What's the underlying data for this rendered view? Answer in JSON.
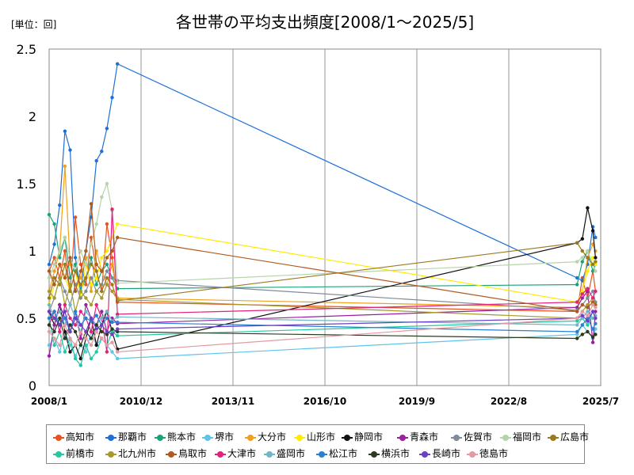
{
  "chart_data": {
    "type": "line",
    "title": "各世帯の平均支出頻度[2008/1～2025/5]",
    "unit_label": "[単位：回]",
    "x_ticks": [
      "2008/1",
      "2010/12",
      "2013/11",
      "2016/10",
      "2019/9",
      "2022/8",
      "2025/7"
    ],
    "y_ticks": [
      "0",
      "0.5",
      "1",
      "1.5",
      "2",
      "2.5"
    ],
    "ylim": [
      0,
      2.5
    ],
    "xlim": [
      "2008/1",
      "2025/7"
    ],
    "grid": "vertical",
    "legend_position": "bottom",
    "series": [
      {
        "name": "高知市",
        "color": "#e8531f",
        "x": [
          "2008/1",
          "2008/3",
          "2008/5",
          "2008/7",
          "2008/9",
          "2008/11",
          "2009/1",
          "2009/3",
          "2009/5",
          "2009/7",
          "2009/9",
          "2009/11",
          "2010/1",
          "2010/3",
          "2024/10",
          "2024/12",
          "2025/2",
          "2025/4",
          "2025/5"
        ],
        "values": [
          0.85,
          0.95,
          0.8,
          1.0,
          0.7,
          1.25,
          0.9,
          0.75,
          1.1,
          0.85,
          0.7,
          1.2,
          0.95,
          0.62,
          0.55,
          0.8,
          0.65,
          0.85,
          0.7
        ]
      },
      {
        "name": "那覇市",
        "color": "#1f6fd8",
        "x": [
          "2008/1",
          "2008/3",
          "2008/5",
          "2008/7",
          "2008/9",
          "2008/11",
          "2009/1",
          "2009/3",
          "2009/5",
          "2009/7",
          "2009/9",
          "2009/11",
          "2010/1",
          "2010/3",
          "2024/10",
          "2024/12",
          "2025/2",
          "2025/4",
          "2025/5"
        ],
        "values": [
          0.9,
          1.05,
          1.34,
          1.89,
          1.75,
          0.95,
          0.7,
          1.0,
          1.25,
          1.67,
          1.74,
          1.91,
          2.14,
          2.39,
          0.8,
          0.78,
          0.9,
          1.18,
          1.1
        ]
      },
      {
        "name": "熊本市",
        "color": "#1aa37a",
        "x": [
          "2008/1",
          "2008/3",
          "2008/5",
          "2008/7",
          "2008/9",
          "2008/11",
          "2009/1",
          "2009/3",
          "2009/5",
          "2009/7",
          "2009/9",
          "2009/11",
          "2010/1",
          "2010/3",
          "2024/10",
          "2024/12",
          "2025/2",
          "2025/4",
          "2025/5"
        ],
        "values": [
          1.27,
          1.2,
          0.95,
          1.1,
          0.8,
          0.9,
          0.7,
          0.8,
          0.95,
          0.75,
          0.85,
          0.9,
          0.8,
          0.72,
          0.75,
          0.92,
          1.0,
          0.85,
          0.9
        ]
      },
      {
        "name": "堺市",
        "color": "#5fc3ea",
        "x": [
          "2008/1",
          "2008/3",
          "2008/5",
          "2008/7",
          "2008/9",
          "2008/11",
          "2009/1",
          "2009/3",
          "2009/5",
          "2009/7",
          "2009/9",
          "2009/11",
          "2010/1",
          "2010/3",
          "2024/10",
          "2024/12",
          "2025/2",
          "2025/4",
          "2025/5"
        ],
        "values": [
          0.3,
          0.35,
          0.25,
          0.4,
          0.3,
          0.22,
          0.3,
          0.25,
          0.4,
          0.3,
          0.35,
          0.3,
          0.25,
          0.2,
          0.38,
          0.45,
          0.4,
          0.35,
          0.42
        ]
      },
      {
        "name": "大分市",
        "color": "#f0a01e",
        "x": [
          "2008/1",
          "2008/3",
          "2008/5",
          "2008/7",
          "2008/9",
          "2008/11",
          "2009/1",
          "2009/3",
          "2009/5",
          "2009/7",
          "2009/9",
          "2009/11",
          "2010/1",
          "2010/3",
          "2024/10",
          "2024/12",
          "2025/2",
          "2025/4",
          "2025/5"
        ],
        "values": [
          0.7,
          0.85,
          1.0,
          1.63,
          0.9,
          0.75,
          0.8,
          0.95,
          0.7,
          1.0,
          0.85,
          0.75,
          0.9,
          0.65,
          0.58,
          0.7,
          0.95,
          1.05,
          1.0
        ]
      },
      {
        "name": "山形市",
        "color": "#ffea00",
        "x": [
          "2008/1",
          "2008/3",
          "2008/5",
          "2008/7",
          "2008/9",
          "2008/11",
          "2009/1",
          "2009/3",
          "2009/5",
          "2009/7",
          "2009/9",
          "2009/11",
          "2010/1",
          "2010/3",
          "2024/10",
          "2024/12",
          "2025/2",
          "2025/4",
          "2025/5"
        ],
        "values": [
          0.6,
          0.75,
          0.9,
          0.8,
          0.7,
          0.85,
          0.65,
          0.9,
          0.75,
          0.8,
          0.95,
          1.0,
          1.1,
          1.2,
          0.62,
          0.7,
          0.85,
          0.95,
          0.9
        ]
      },
      {
        "name": "静岡市",
        "color": "#111111",
        "x": [
          "2008/1",
          "2008/3",
          "2008/5",
          "2008/7",
          "2008/9",
          "2008/11",
          "2009/1",
          "2009/3",
          "2009/5",
          "2009/7",
          "2009/9",
          "2009/11",
          "2010/1",
          "2010/3",
          "2024/10",
          "2024/12",
          "2025/2",
          "2025/4",
          "2025/5"
        ],
        "values": [
          0.55,
          0.45,
          0.6,
          0.4,
          0.25,
          0.3,
          0.2,
          0.35,
          0.5,
          0.3,
          0.45,
          0.55,
          0.4,
          0.27,
          1.06,
          1.09,
          1.32,
          1.15,
          0.95
        ]
      },
      {
        "name": "青森市",
        "color": "#9a1fa1",
        "x": [
          "2008/1",
          "2008/3",
          "2008/5",
          "2008/7",
          "2008/9",
          "2008/11",
          "2009/1",
          "2009/3",
          "2009/5",
          "2009/7",
          "2009/9",
          "2009/11",
          "2010/1",
          "2010/3",
          "2024/10",
          "2024/12",
          "2025/2",
          "2025/4",
          "2025/5"
        ],
        "values": [
          0.22,
          0.45,
          0.6,
          0.5,
          0.4,
          0.55,
          0.35,
          0.6,
          0.5,
          0.45,
          0.55,
          0.4,
          0.5,
          0.46,
          0.58,
          0.65,
          0.7,
          0.32,
          0.55
        ]
      },
      {
        "name": "佐賀市",
        "color": "#7f8b99",
        "x": [
          "2008/1",
          "2008/3",
          "2008/5",
          "2008/7",
          "2008/9",
          "2008/11",
          "2009/1",
          "2009/3",
          "2009/5",
          "2009/7",
          "2009/9",
          "2009/11",
          "2010/1",
          "2010/3",
          "2024/10",
          "2024/12",
          "2025/2",
          "2025/4",
          "2025/5"
        ],
        "values": [
          0.55,
          0.65,
          0.8,
          0.7,
          0.6,
          0.75,
          0.65,
          0.7,
          0.8,
          0.7,
          0.75,
          0.85,
          0.8,
          0.78,
          0.56,
          0.6,
          0.65,
          0.7,
          0.62
        ]
      },
      {
        "name": "福岡市",
        "color": "#b6d4a8",
        "x": [
          "2008/1",
          "2008/3",
          "2008/5",
          "2008/7",
          "2008/9",
          "2008/11",
          "2009/1",
          "2009/3",
          "2009/5",
          "2009/7",
          "2009/9",
          "2009/11",
          "2010/1",
          "2010/3",
          "2024/10",
          "2024/12",
          "2025/2",
          "2025/4",
          "2025/5"
        ],
        "values": [
          0.8,
          0.9,
          1.0,
          1.1,
          0.95,
          0.85,
          1.0,
          0.9,
          1.05,
          1.2,
          1.4,
          1.5,
          1.3,
          0.76,
          0.92,
          0.95,
          1.0,
          0.9,
          0.85
        ]
      },
      {
        "name": "広島市",
        "color": "#9b7a1f",
        "x": [
          "2008/1",
          "2008/3",
          "2008/5",
          "2008/7",
          "2008/9",
          "2008/11",
          "2009/1",
          "2009/3",
          "2009/5",
          "2009/7",
          "2009/9",
          "2009/11",
          "2010/1",
          "2010/3",
          "2024/10",
          "2024/12",
          "2025/2",
          "2025/4",
          "2025/5"
        ],
        "values": [
          0.65,
          0.8,
          0.75,
          0.9,
          0.7,
          0.85,
          0.75,
          0.8,
          0.9,
          0.85,
          0.7,
          0.8,
          0.75,
          0.63,
          1.06,
          1.0,
          0.95,
          0.9,
          0.92
        ]
      },
      {
        "name": "前橋市",
        "color": "#25c7a0",
        "x": [
          "2008/1",
          "2008/3",
          "2008/5",
          "2008/7",
          "2008/9",
          "2008/11",
          "2009/1",
          "2009/3",
          "2009/5",
          "2009/7",
          "2009/9",
          "2009/11",
          "2010/1",
          "2010/3",
          "2024/10",
          "2024/12",
          "2025/2",
          "2025/4",
          "2025/5"
        ],
        "values": [
          0.5,
          0.3,
          0.4,
          0.25,
          0.35,
          0.2,
          0.15,
          0.3,
          0.2,
          0.25,
          0.35,
          0.3,
          0.4,
          0.37,
          0.48,
          0.5,
          0.45,
          0.55,
          0.5
        ]
      },
      {
        "name": "北九州市",
        "color": "#a59a2a",
        "x": [
          "2008/1",
          "2008/3",
          "2008/5",
          "2008/7",
          "2008/9",
          "2008/11",
          "2009/1",
          "2009/3",
          "2009/5",
          "2009/7",
          "2009/9",
          "2009/11",
          "2010/1",
          "2010/3",
          "2024/10",
          "2024/12",
          "2025/2",
          "2025/4",
          "2025/5"
        ],
        "values": [
          0.7,
          0.65,
          0.8,
          0.6,
          0.75,
          0.55,
          0.7,
          0.65,
          0.6,
          0.7,
          0.65,
          0.75,
          0.7,
          0.64,
          0.5,
          0.55,
          0.6,
          0.65,
          0.6
        ]
      },
      {
        "name": "鳥取市",
        "color": "#b05a1f",
        "x": [
          "2008/1",
          "2008/3",
          "2008/5",
          "2008/7",
          "2008/9",
          "2008/11",
          "2009/1",
          "2009/3",
          "2009/5",
          "2009/7",
          "2009/9",
          "2009/11",
          "2010/1",
          "2010/3",
          "2024/10",
          "2024/12",
          "2025/2",
          "2025/4",
          "2025/5"
        ],
        "values": [
          0.85,
          0.75,
          0.9,
          0.8,
          0.95,
          0.7,
          0.85,
          1.0,
          1.35,
          0.9,
          0.85,
          0.95,
          1.0,
          1.1,
          0.55,
          0.6,
          0.58,
          0.62,
          0.6
        ]
      },
      {
        "name": "大津市",
        "color": "#e0217d",
        "x": [
          "2008/1",
          "2008/3",
          "2008/5",
          "2008/7",
          "2008/9",
          "2008/11",
          "2009/1",
          "2009/3",
          "2009/5",
          "2009/7",
          "2009/9",
          "2009/11",
          "2010/1",
          "2010/3",
          "2024/10",
          "2024/12",
          "2025/2",
          "2025/4",
          "2025/5"
        ],
        "values": [
          0.45,
          0.55,
          0.4,
          0.6,
          0.5,
          0.45,
          0.55,
          0.5,
          0.4,
          0.6,
          0.5,
          0.25,
          1.31,
          0.53,
          0.62,
          0.68,
          0.72,
          0.65,
          0.7
        ]
      },
      {
        "name": "盛岡市",
        "color": "#6fb7c4",
        "x": [
          "2008/1",
          "2008/3",
          "2008/5",
          "2008/7",
          "2008/9",
          "2008/11",
          "2009/1",
          "2009/3",
          "2009/5",
          "2009/7",
          "2009/9",
          "2009/11",
          "2010/1",
          "2010/3",
          "2024/10",
          "2024/12",
          "2025/2",
          "2025/4",
          "2025/5"
        ],
        "values": [
          0.6,
          0.5,
          0.55,
          0.45,
          0.6,
          0.5,
          0.4,
          0.55,
          0.5,
          0.45,
          0.5,
          0.55,
          0.48,
          0.51,
          0.45,
          0.5,
          0.55,
          0.5,
          0.52
        ]
      },
      {
        "name": "松江市",
        "color": "#2a7fd0",
        "x": [
          "2008/1",
          "2008/3",
          "2008/5",
          "2008/7",
          "2008/9",
          "2008/11",
          "2009/1",
          "2009/3",
          "2009/5",
          "2009/7",
          "2009/9",
          "2009/11",
          "2010/1",
          "2010/3",
          "2024/10",
          "2024/12",
          "2025/2",
          "2025/4",
          "2025/5"
        ],
        "values": [
          0.5,
          0.55,
          0.45,
          0.5,
          0.4,
          0.55,
          0.45,
          0.5,
          0.48,
          0.52,
          0.45,
          0.5,
          0.47,
          0.47,
          0.4,
          0.45,
          0.5,
          0.42,
          0.46
        ]
      },
      {
        "name": "横浜市",
        "color": "#2a3a1f",
        "x": [
          "2008/1",
          "2008/3",
          "2008/5",
          "2008/7",
          "2008/9",
          "2008/11",
          "2009/1",
          "2009/3",
          "2009/5",
          "2009/7",
          "2009/9",
          "2009/11",
          "2010/1",
          "2010/3",
          "2024/10",
          "2024/12",
          "2025/2",
          "2025/4",
          "2025/5"
        ],
        "values": [
          0.45,
          0.4,
          0.5,
          0.35,
          0.45,
          0.4,
          0.3,
          0.4,
          0.35,
          0.45,
          0.4,
          0.38,
          0.42,
          0.4,
          0.35,
          0.38,
          0.4,
          0.36,
          0.38
        ]
      },
      {
        "name": "長崎市",
        "color": "#6a3fc4",
        "x": [
          "2008/1",
          "2008/3",
          "2008/5",
          "2008/7",
          "2008/9",
          "2008/11",
          "2009/1",
          "2009/3",
          "2009/5",
          "2009/7",
          "2009/9",
          "2009/11",
          "2010/1",
          "2010/3",
          "2024/10",
          "2024/12",
          "2025/2",
          "2025/4",
          "2025/5"
        ],
        "values": [
          0.55,
          0.5,
          0.45,
          0.55,
          0.4,
          0.5,
          0.45,
          0.4,
          0.5,
          0.42,
          0.45,
          0.4,
          0.38,
          0.42,
          0.5,
          0.52,
          0.48,
          0.55,
          0.5
        ]
      },
      {
        "name": "徳島市",
        "color": "#e39aa0",
        "x": [
          "2008/1",
          "2008/3",
          "2008/5",
          "2008/7",
          "2008/9",
          "2008/11",
          "2009/1",
          "2009/3",
          "2009/5",
          "2009/7",
          "2009/9",
          "2009/11",
          "2010/1",
          "2010/3",
          "2024/10",
          "2024/12",
          "2025/2",
          "2025/4",
          "2025/5"
        ],
        "values": [
          0.4,
          0.35,
          0.3,
          0.45,
          0.35,
          0.3,
          0.4,
          0.35,
          0.3,
          0.4,
          0.35,
          0.3,
          0.32,
          0.25,
          0.5,
          0.55,
          0.52,
          0.6,
          0.58
        ]
      }
    ]
  }
}
